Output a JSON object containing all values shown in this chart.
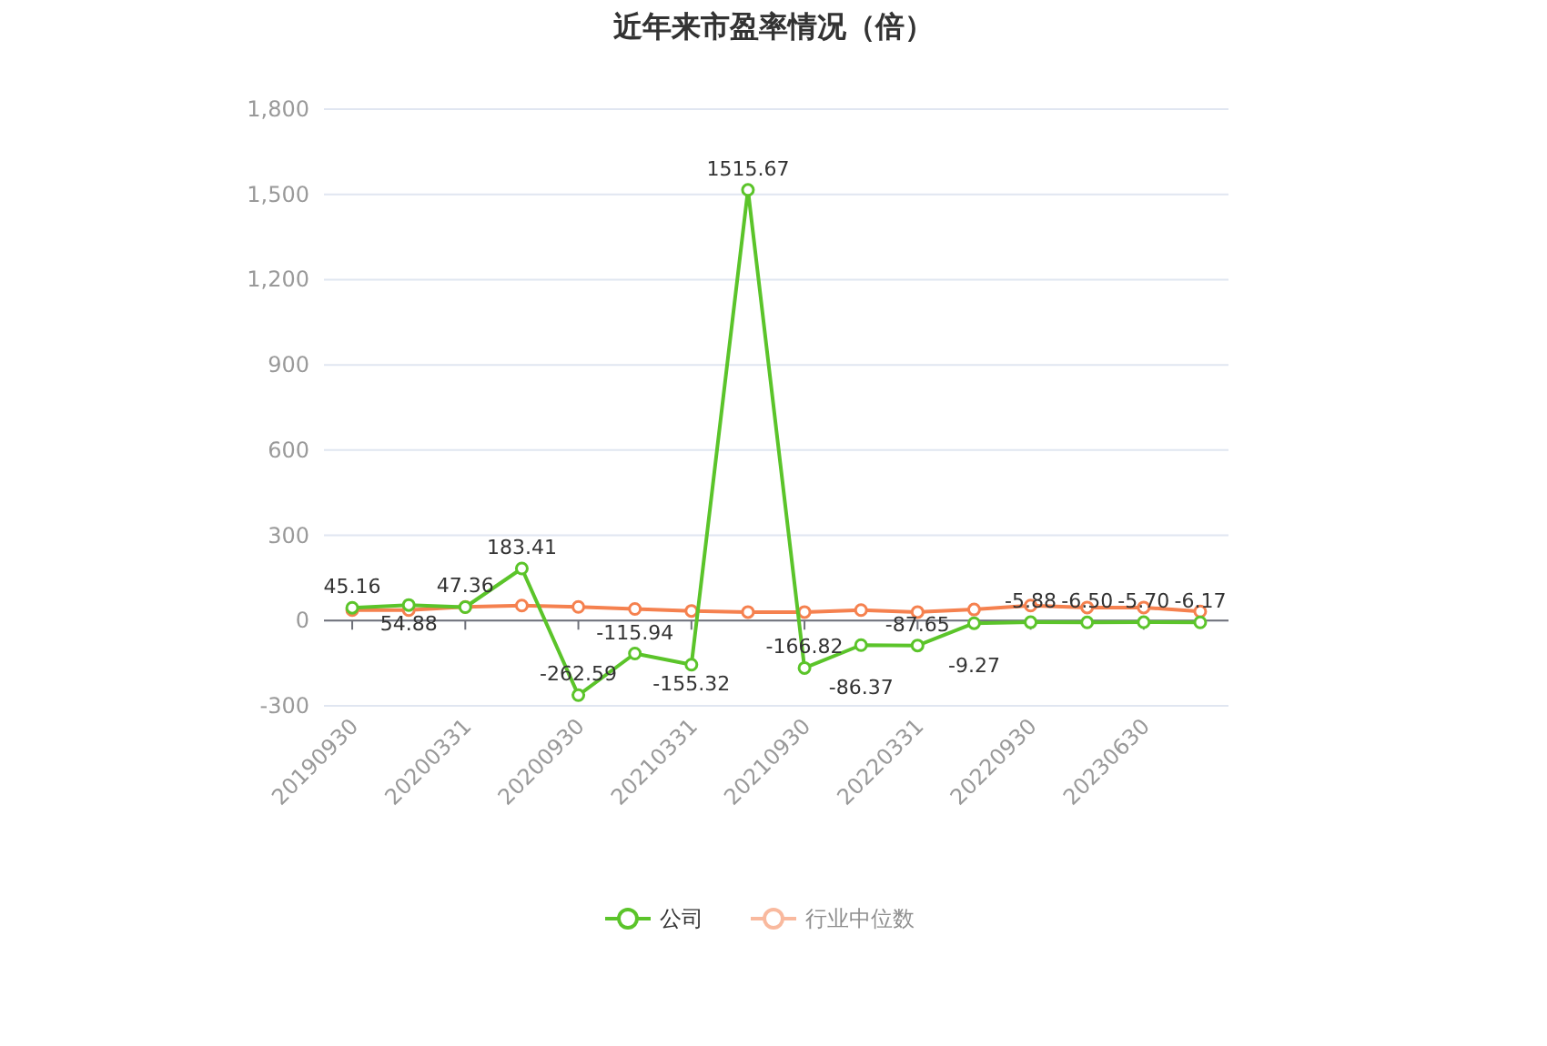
{
  "chart_data": {
    "type": "line",
    "title": "近年来市盈率情况（倍）",
    "categories": [
      "20190930",
      null,
      "20200331",
      null,
      "20200930",
      null,
      "20210331",
      null,
      "20210930",
      null,
      "20220331",
      null,
      "20220930",
      null,
      "20230630",
      null
    ],
    "series": [
      {
        "name": "公司",
        "color": "#5bc42a",
        "values": [
          45.16,
          54.88,
          47.36,
          183.41,
          -262.59,
          -115.94,
          -155.32,
          1515.67,
          -166.82,
          -86.37,
          -87.65,
          -9.27,
          -5.88,
          -6.5,
          -5.7,
          -6.17
        ],
        "value_labels": [
          "45.16",
          "54.88",
          "47.36",
          "183.41",
          "-262.59",
          "-115.94",
          "-155.32",
          "1515.67",
          "-166.82",
          "-86.37",
          "-87.65",
          "-9.27",
          "-5.88",
          "-6.50",
          "-5.70",
          "-6.17"
        ]
      },
      {
        "name": "行业中位数",
        "color": "#f5814f",
        "values": [
          37,
          37,
          48,
          53,
          48,
          41,
          34,
          30,
          30,
          37,
          30,
          39,
          53,
          46,
          46,
          32
        ]
      }
    ],
    "ylim": [
      -300,
      1800
    ],
    "yticks": [
      -300,
      0,
      300,
      600,
      900,
      {
        "value": 1200,
        "label": "1,200"
      },
      {
        "value": 1500,
        "label": "1,500"
      },
      {
        "value": 1800,
        "label": "1,800"
      }
    ],
    "grid": "y",
    "legend": "bottom",
    "marker": "circle"
  }
}
